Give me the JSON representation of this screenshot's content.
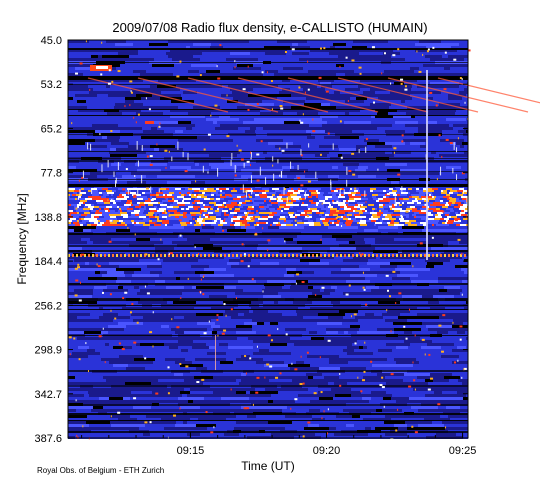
{
  "chart_data": {
    "type": "heatmap",
    "title": "2009/07/08  Radio flux density, e-CALLISTO (HUMAIN)",
    "xlabel": "Time (UT)",
    "ylabel": "Frequency [MHz]",
    "credit": "Royal Obs. of Belgium - ETH Zurich",
    "x_ticks": [
      "09:15",
      "09:20",
      "09:25"
    ],
    "x_range_note": "approx 09:10:30 to 09:25:10 UT",
    "y_ticks": [
      "45.0",
      "53.2",
      "65.2",
      "77.8",
      "138.8",
      "184.4",
      "256.2",
      "298.9",
      "342.7",
      "387.6"
    ],
    "y_axis_inverted": true,
    "colormap": [
      "#000000",
      "#1a1a8c",
      "#2a33d8",
      "#4a55ff",
      "#ff3b1f",
      "#ffb020",
      "#ffffff"
    ],
    "features": [
      {
        "kind": "hot-band",
        "freq": [
          122,
          148
        ],
        "note": "strong interference band"
      },
      {
        "kind": "line",
        "freq": 188,
        "note": "dotted carrier line"
      },
      {
        "kind": "drifting-streaks",
        "freq": [
          45,
          75
        ],
        "note": "diagonal drifting features"
      }
    ]
  }
}
